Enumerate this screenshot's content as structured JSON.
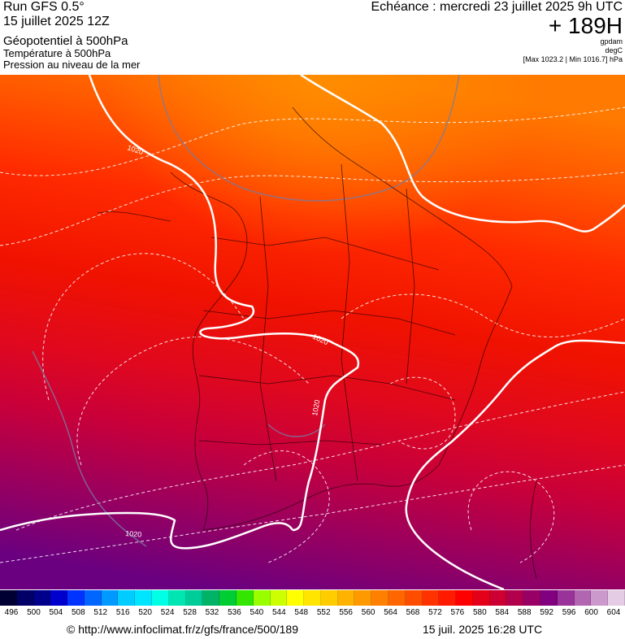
{
  "header": {
    "run": "Run GFS 0.5°",
    "run_date": "15 juillet 2025 12Z",
    "param_main": "Géopotentiel à 500hPa",
    "param_temp": "Température à 500hPa",
    "param_slp": "Pression au niveau de la mer",
    "echeance": "Echéance : mercredi 23 juillet 2025 9h UTC",
    "forecast_hours": "+ 189H",
    "unit_geopot": "gpdam",
    "unit_temp": "degC",
    "pressure_range": "[Max 1023.2 | Min 1016.7] hPa"
  },
  "map": {
    "isobar_labels": [
      "1020",
      "1020",
      "1020",
      "1020"
    ]
  },
  "scale": {
    "labels": [
      "496",
      "500",
      "504",
      "508",
      "512",
      "516",
      "520",
      "524",
      "528",
      "532",
      "536",
      "540",
      "544",
      "548",
      "552",
      "556",
      "560",
      "564",
      "568",
      "572",
      "576",
      "580",
      "584",
      "588",
      "592",
      "596",
      "600",
      "604"
    ],
    "colors": [
      "#000033",
      "#000066",
      "#00008c",
      "#0000cc",
      "#0033ff",
      "#0066ff",
      "#0099ff",
      "#00ccff",
      "#00e5ff",
      "#00ffe5",
      "#00e5b2",
      "#00cc99",
      "#00b366",
      "#00cc33",
      "#33e500",
      "#99ff00",
      "#ccff00",
      "#ffff00",
      "#ffe500",
      "#ffcc00",
      "#ffb300",
      "#ff9900",
      "#ff8000",
      "#ff6600",
      "#ff4d00",
      "#ff3300",
      "#ff1a00",
      "#ff0000",
      "#e5001a",
      "#cc0033",
      "#b3004d",
      "#990066",
      "#800080",
      "#993399",
      "#b266b2",
      "#cc99cc",
      "#e5cce5"
    ]
  },
  "footer": {
    "url": "© http://www.infoclimat.fr/z/gfs/france/500/189",
    "timestamp": "15 juil. 2025 16:28 UTC"
  }
}
